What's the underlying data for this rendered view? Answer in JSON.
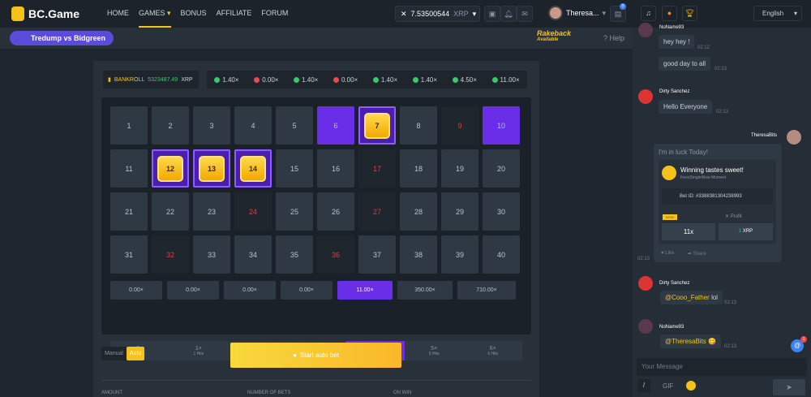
{
  "header": {
    "brand": "BC.Game",
    "nav": [
      "HOME",
      "GAMES",
      "BONUS",
      "AFFILIATE",
      "FORUM"
    ],
    "active_nav": "GAMES",
    "balance": "7.53500544",
    "currency": "XRP",
    "username": "Theresa...",
    "chat_badge": "0"
  },
  "subheader": {
    "promo": "Tredump vs Bidgreen",
    "rakeback": "Rakeback",
    "rakeback_sub": "Available",
    "help": "Help"
  },
  "game": {
    "bankroll_label": "BANKROLL",
    "bankroll_value": "5323487.49",
    "bankroll_currency": "XRP",
    "history": [
      {
        "v": "1.40×",
        "c": "#3bc76b"
      },
      {
        "v": "0.00×",
        "c": "#e84d4d"
      },
      {
        "v": "1.40×",
        "c": "#3bc76b"
      },
      {
        "v": "0.00×",
        "c": "#e84d4d"
      },
      {
        "v": "1.40×",
        "c": "#3bc76b"
      },
      {
        "v": "1.40×",
        "c": "#3bc76b"
      },
      {
        "v": "4.50×",
        "c": "#3bc76b"
      },
      {
        "v": "11.00×",
        "c": "#3bc76b"
      }
    ],
    "tiles_total": 40,
    "picked": [
      6,
      10
    ],
    "hits": [
      7,
      12,
      13,
      14
    ],
    "drawn_misses": [
      9,
      17,
      24,
      27,
      32,
      36
    ],
    "payouts": [
      "0.00×",
      "0.00×",
      "0.00×",
      "0.00×",
      "11.00×",
      "350.00×",
      "710.00×"
    ],
    "active_payout": 4,
    "hit_counts": [
      {
        "m": "0×",
        "h": "0 Hits"
      },
      {
        "m": "1×",
        "h": "1 Hits"
      },
      {
        "m": "2×",
        "h": "2 Hits"
      },
      {
        "m": "3×",
        "h": "3 Hits"
      },
      {
        "m": "4×",
        "h": "4 Hits"
      },
      {
        "m": "5×",
        "h": "5 Hits"
      },
      {
        "m": "6×",
        "h": "6 Hits"
      }
    ],
    "mode_manual": "Manual",
    "mode_auto": "Auto",
    "active_mode": "Auto",
    "start_button": "Start auto bet",
    "labels": {
      "amount": "AMOUNT",
      "bets": "NUMBER OF BETS",
      "onwin": "ON WIN"
    }
  },
  "chat": {
    "language": "English",
    "messages": [
      {
        "user": "NoName93",
        "text": "hey hey !",
        "time": "02:12"
      },
      {
        "text": "good day to all",
        "time": "02:13"
      },
      {
        "user": "Dirty Sanchez",
        "text": "Hello Everyone",
        "time": "02:13"
      },
      {
        "user": "TheresaBits"
      },
      {
        "user": "Dirty Sanchez",
        "mention": "@Cooo_Father",
        "text": "lol",
        "time": "02:13"
      },
      {
        "user": "NoName93",
        "mention": "@TheresaBits",
        "text": "😋",
        "time": "02:13"
      }
    ],
    "card": {
      "text": "I'm in luck Today!",
      "title": "Winning tastes sweet!",
      "subtitle": "KenoSingleWow Moment",
      "bet_id": "Bet ID: #3388381304238993",
      "won_label": "WON",
      "profit_label": "Profit",
      "multiplier": "11x",
      "profit_amount": "1",
      "profit_currency": "XRP",
      "like": "Like",
      "share": "Share",
      "time": "02:13"
    },
    "mention_badge": "1",
    "placeholder": "Your Message",
    "gif": "GIF",
    "slash": "/"
  }
}
